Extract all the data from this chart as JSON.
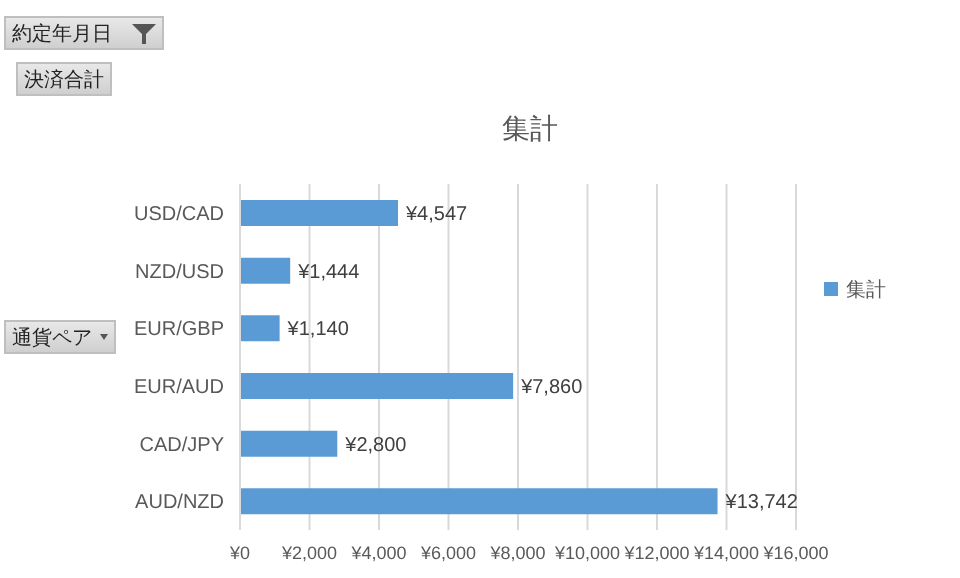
{
  "chart_data": {
    "type": "bar",
    "orientation": "horizontal",
    "title": "集計",
    "categories": [
      "USD/CAD",
      "NZD/USD",
      "EUR/GBP",
      "EUR/AUD",
      "CAD/JPY",
      "AUD/NZD"
    ],
    "series": [
      {
        "name": "集計",
        "color": "#5b9bd5",
        "values": [
          4547,
          1444,
          1140,
          7860,
          2800,
          13742
        ],
        "value_labels": [
          "¥4,547",
          "¥1,444",
          "¥1,140",
          "¥7,860",
          "¥2,800",
          "¥13,742"
        ]
      }
    ],
    "xlim": [
      0,
      16000
    ],
    "xticks": [
      {
        "value": 0,
        "label": "¥0"
      },
      {
        "value": 2000,
        "label": "¥2,000"
      },
      {
        "value": 4000,
        "label": "¥4,000"
      },
      {
        "value": 6000,
        "label": "¥6,000"
      },
      {
        "value": 8000,
        "label": "¥8,000"
      },
      {
        "value": 10000,
        "label": "¥10,000"
      },
      {
        "value": 12000,
        "label": "¥12,000"
      },
      {
        "value": 14000,
        "label": "¥14,000"
      },
      {
        "value": 16000,
        "label": "¥16,000"
      }
    ],
    "grid": "x",
    "legend": "right",
    "annotations": [
      "約定年月日",
      "決済合計",
      "通貨ペア"
    ]
  }
}
